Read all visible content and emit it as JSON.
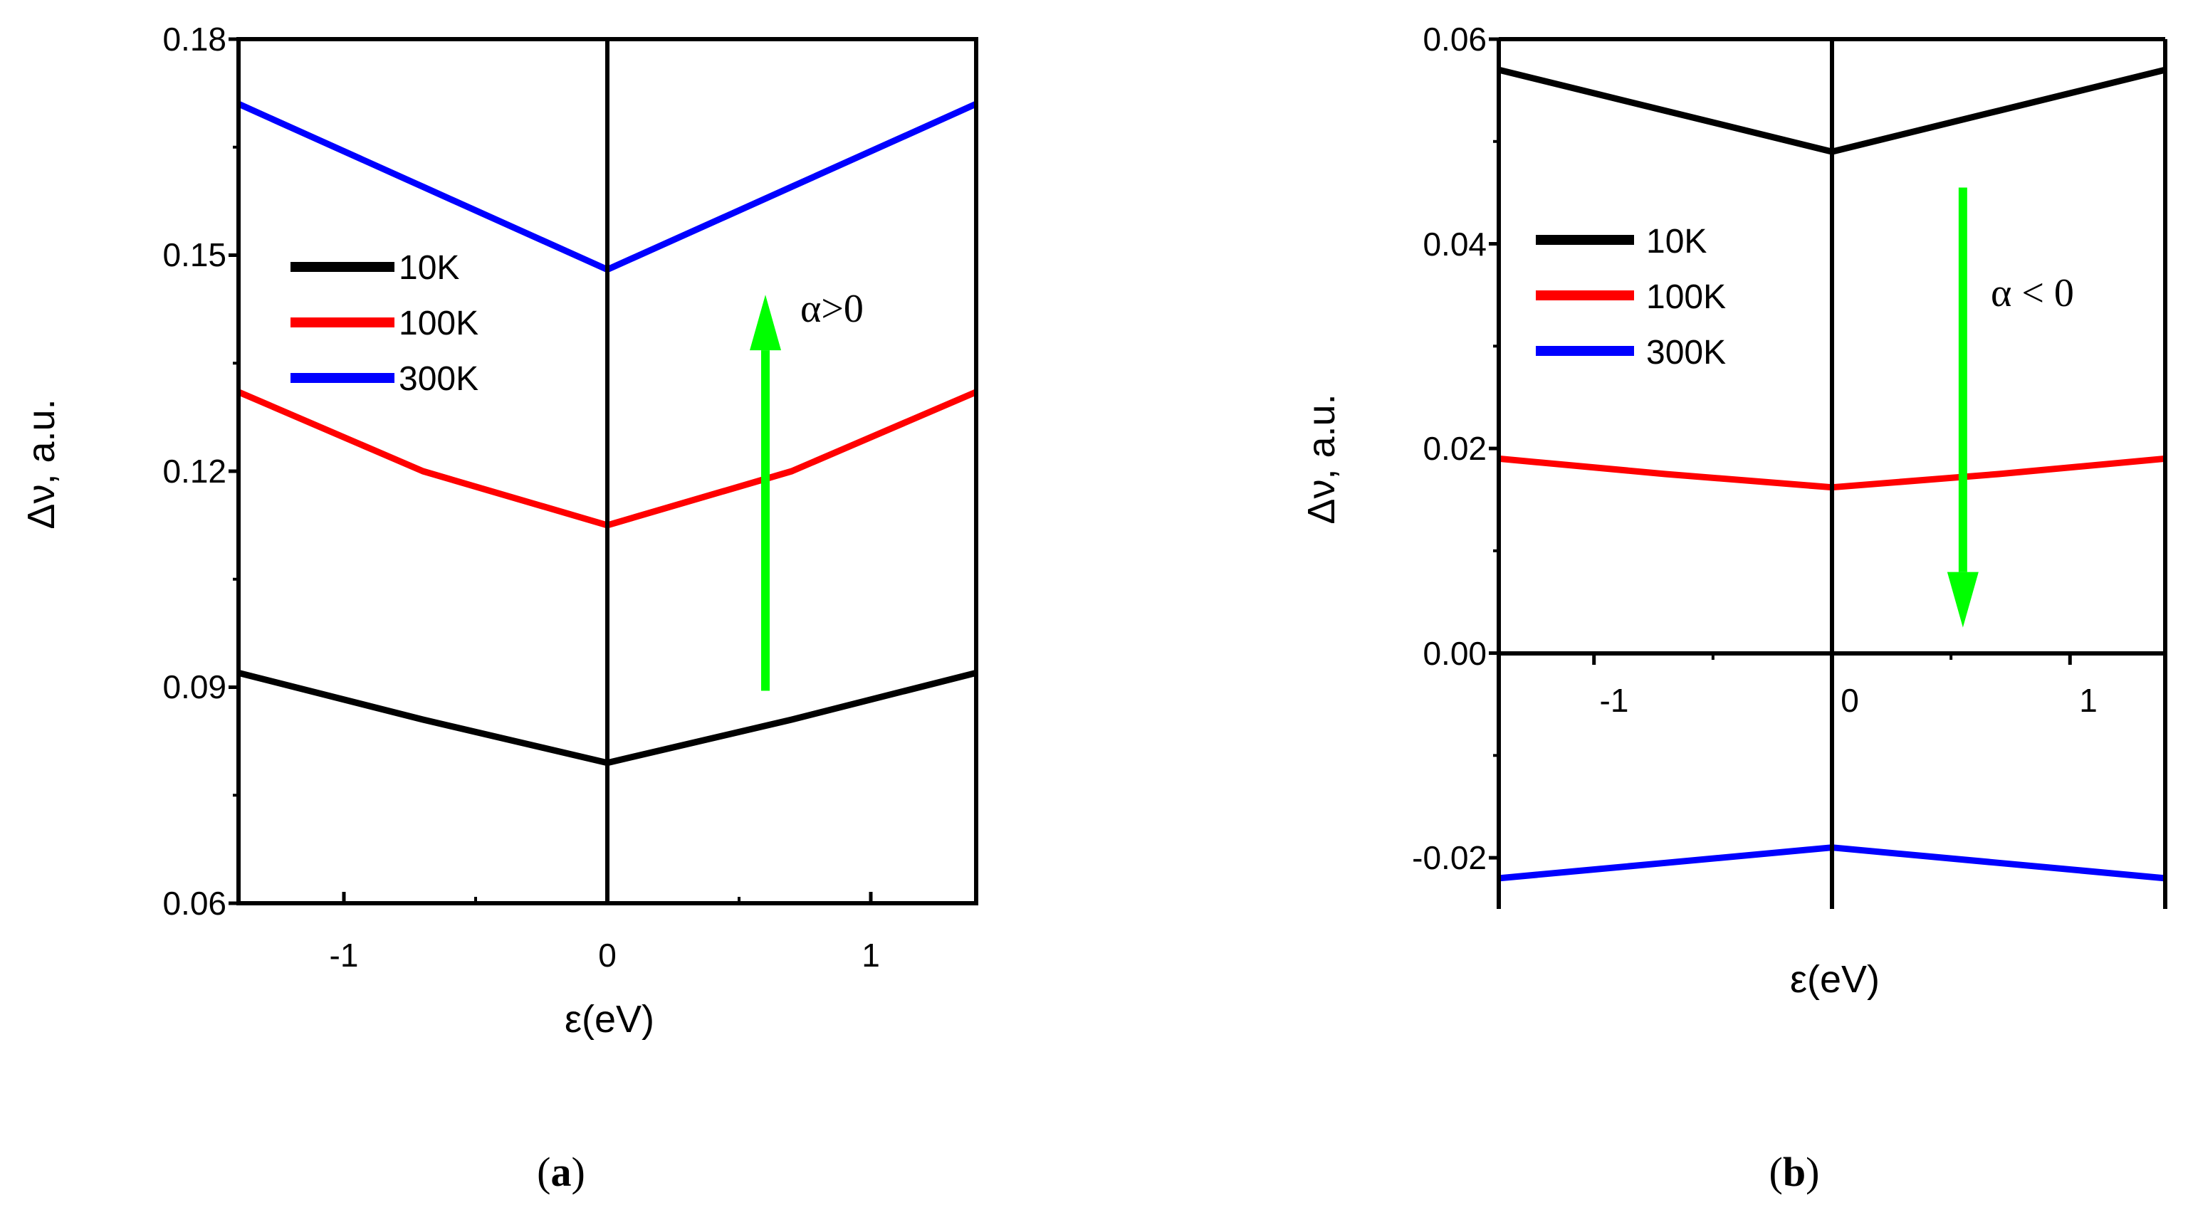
{
  "chart_data": [
    {
      "panel": "(a)",
      "caption_paren_open": "(",
      "caption_letter": "a",
      "caption_paren_close": ")",
      "type": "line",
      "title": "",
      "xlabel": "ε(eV)",
      "ylabel": "Δν, a.u.",
      "xlim": [
        -1.4,
        1.4
      ],
      "ylim": [
        0.06,
        0.18
      ],
      "xticks": [
        -1,
        0,
        1
      ],
      "xtick_labels": [
        "-1",
        "0",
        "1"
      ],
      "yticks": [
        0.06,
        0.09,
        0.12,
        0.15,
        0.18
      ],
      "ytick_labels": [
        "0.06",
        "0.09",
        "0.12",
        "0.15",
        "0.18"
      ],
      "x": [
        -1.4,
        -0.7,
        0,
        0.7,
        1.4
      ],
      "series": [
        {
          "name": "10K",
          "color": "#000000",
          "values": [
            0.092,
            0.0855,
            0.0795,
            0.0855,
            0.092
          ]
        },
        {
          "name": "100K",
          "color": "#ff0000",
          "values": [
            0.131,
            0.12,
            0.1125,
            0.12,
            0.131
          ]
        },
        {
          "name": "300K",
          "color": "#0000ff",
          "values": [
            0.171,
            0.1595,
            0.148,
            0.1595,
            0.171
          ]
        }
      ],
      "legend": {
        "placement": "upper-left",
        "entries": [
          "10K",
          "100K",
          "300K"
        ]
      },
      "annotation": {
        "text": "α>0",
        "arrow": "up",
        "arrow_color": "#00ff00",
        "arrow_x": 0.6,
        "arrow_y_from": 0.0895,
        "arrow_y_to": 0.1445
      }
    },
    {
      "panel": "(b)",
      "caption_paren_open": "(",
      "caption_letter": "b",
      "caption_paren_close": ")",
      "type": "line",
      "title": "",
      "xlabel": "ε(eV)",
      "ylabel": "Δν, a.u.",
      "xlim": [
        -1.4,
        1.4
      ],
      "ylim": [
        -0.025,
        0.06
      ],
      "xticks": [
        -1,
        0,
        1
      ],
      "xtick_labels": [
        "-1",
        "0",
        "1"
      ],
      "yticks": [
        -0.02,
        0.0,
        0.02,
        0.04,
        0.06
      ],
      "ytick_labels": [
        "-0.02",
        "0.00",
        "0.02",
        "0.04",
        "0.06"
      ],
      "x": [
        -1.4,
        -0.7,
        0,
        0.7,
        1.4
      ],
      "series": [
        {
          "name": "10K",
          "color": "#000000",
          "values": [
            0.057,
            0.053,
            0.049,
            0.053,
            0.057
          ]
        },
        {
          "name": "100K",
          "color": "#ff0000",
          "values": [
            0.019,
            0.0175,
            0.0162,
            0.0175,
            0.019
          ]
        },
        {
          "name": "300K",
          "color": "#0000ff",
          "values": [
            -0.022,
            -0.0205,
            -0.019,
            -0.0205,
            -0.022
          ]
        }
      ],
      "legend": {
        "placement": "upper-left",
        "entries": [
          "10K",
          "100K",
          "300K"
        ]
      },
      "annotation": {
        "text": "α < 0",
        "arrow": "down",
        "arrow_color": "#00ff00",
        "arrow_x": 0.55,
        "arrow_y_from": 0.0455,
        "arrow_y_to": 0.0025
      }
    }
  ]
}
